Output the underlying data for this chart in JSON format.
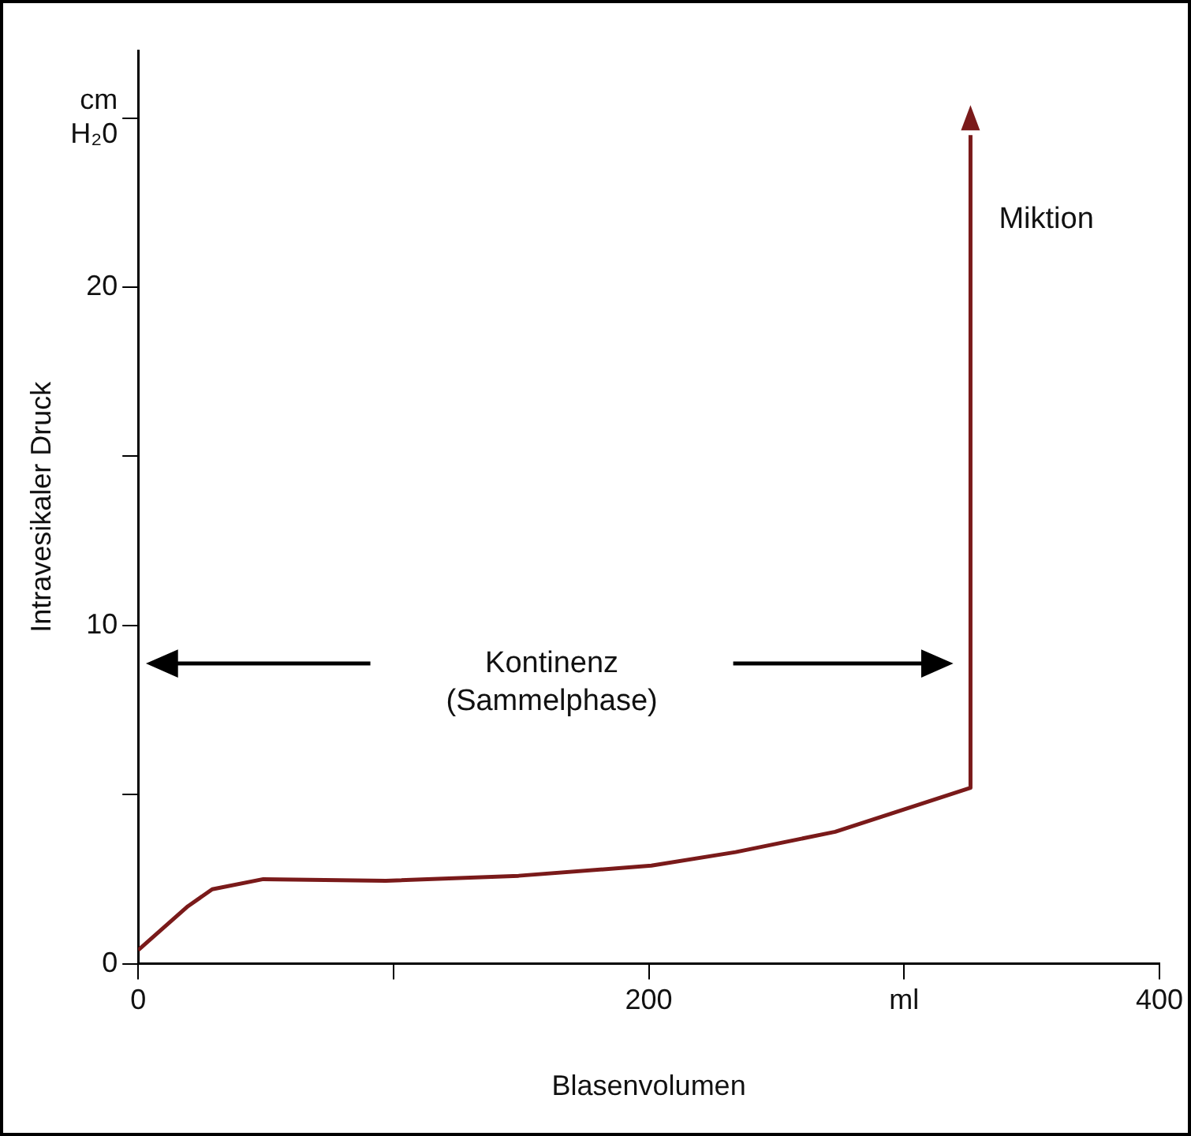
{
  "chart_data": {
    "type": "line",
    "xlabel": "Blasenvolumen",
    "ylabel": "Intravesikaler Druck",
    "x": [
      0,
      19.5,
      29,
      49,
      97,
      149,
      201,
      234,
      273,
      326,
      326
    ],
    "series": [
      {
        "color": "#7a1a1a",
        "values": [
          0.4,
          1.7,
          2.2,
          2.5,
          2.45,
          2.6,
          2.9,
          3.3,
          3.9,
          5.2,
          24.5
        ]
      }
    ],
    "xlim": [
      0,
      400
    ],
    "xticks": [
      0,
      {
        "value": 100,
        "label": null
      },
      200,
      {
        "value": 300,
        "label": "ml"
      },
      400
    ],
    "ylim": [
      0,
      27
    ],
    "yticks": [
      0,
      {
        "value": 5,
        "label": null
      },
      10,
      {
        "value": 15,
        "label": null
      },
      20,
      {
        "value": 25,
        "label": "cm H₂0"
      }
    ],
    "annotations": [
      {
        "text": "Miktion",
        "x": 326,
        "y": 22
      },
      "Kontinenz\n(Sammelphase)"
    ],
    "grid": false,
    "legend": false,
    "marker": "none",
    "line_style": "solid"
  }
}
